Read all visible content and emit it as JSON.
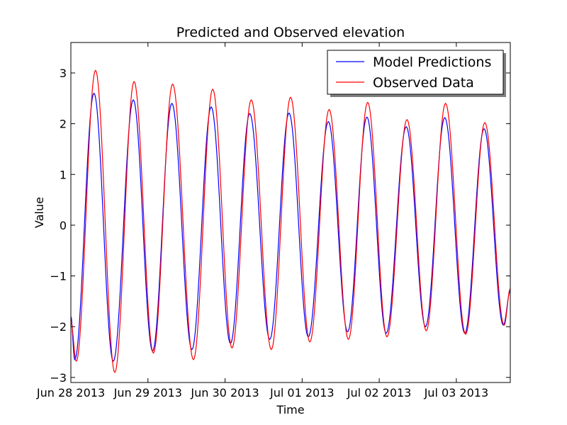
{
  "chart_data": {
    "type": "line",
    "title": "Predicted and Observed elevation",
    "xlabel": "Time",
    "ylabel": "Value",
    "x_unit": "days",
    "xlim": [
      0,
      5.7
    ],
    "ylim": [
      -3.1,
      3.6
    ],
    "xticks": [
      {
        "value": 0,
        "label": "Jun 28 2013"
      },
      {
        "value": 1,
        "label": "Jun 29 2013"
      },
      {
        "value": 2,
        "label": "Jun 30 2013"
      },
      {
        "value": 3,
        "label": "Jul 01 2013"
      },
      {
        "value": 4,
        "label": "Jul 02 2013"
      },
      {
        "value": 5,
        "label": "Jul 03 2013"
      }
    ],
    "yticks": [
      {
        "value": -3,
        "label": "−3"
      },
      {
        "value": -2,
        "label": "−2"
      },
      {
        "value": -1,
        "label": "−1"
      },
      {
        "value": 0,
        "label": "0"
      },
      {
        "value": 1,
        "label": "1"
      },
      {
        "value": 2,
        "label": "2"
      },
      {
        "value": 3,
        "label": "3"
      }
    ],
    "grid": false,
    "legend_position": "top-right",
    "series": [
      {
        "name": "Model Predictions",
        "color": "#0000ff",
        "extrema": [
          {
            "x": 0.0,
            "y": -1.8
          },
          {
            "x": 0.05,
            "y": -2.65
          },
          {
            "x": 0.3,
            "y": 2.6
          },
          {
            "x": 0.55,
            "y": -2.68
          },
          {
            "x": 0.81,
            "y": 2.47
          },
          {
            "x": 1.06,
            "y": -2.48
          },
          {
            "x": 1.31,
            "y": 2.4
          },
          {
            "x": 1.57,
            "y": -2.45
          },
          {
            "x": 1.82,
            "y": 2.33
          },
          {
            "x": 2.07,
            "y": -2.33
          },
          {
            "x": 2.32,
            "y": 2.2
          },
          {
            "x": 2.58,
            "y": -2.25
          },
          {
            "x": 2.83,
            "y": 2.21
          },
          {
            "x": 3.08,
            "y": -2.2
          },
          {
            "x": 3.34,
            "y": 2.04
          },
          {
            "x": 3.59,
            "y": -2.1
          },
          {
            "x": 3.84,
            "y": 2.13
          },
          {
            "x": 4.09,
            "y": -2.13
          },
          {
            "x": 4.35,
            "y": 1.94
          },
          {
            "x": 4.6,
            "y": -2.0
          },
          {
            "x": 4.85,
            "y": 2.12
          },
          {
            "x": 5.11,
            "y": -2.13
          },
          {
            "x": 5.36,
            "y": 1.9
          },
          {
            "x": 5.61,
            "y": -1.97
          },
          {
            "x": 5.7,
            "y": -1.3
          }
        ]
      },
      {
        "name": "Observed Data",
        "color": "#ff0000",
        "extrema": [
          {
            "x": 0.0,
            "y": -1.9
          },
          {
            "x": 0.07,
            "y": -2.68
          },
          {
            "x": 0.32,
            "y": 3.05
          },
          {
            "x": 0.57,
            "y": -2.9
          },
          {
            "x": 0.82,
            "y": 2.83
          },
          {
            "x": 1.07,
            "y": -2.52
          },
          {
            "x": 1.32,
            "y": 2.78
          },
          {
            "x": 1.59,
            "y": -2.65
          },
          {
            "x": 1.84,
            "y": 2.68
          },
          {
            "x": 2.09,
            "y": -2.42
          },
          {
            "x": 2.34,
            "y": 2.47
          },
          {
            "x": 2.6,
            "y": -2.45
          },
          {
            "x": 2.85,
            "y": 2.52
          },
          {
            "x": 3.1,
            "y": -2.3
          },
          {
            "x": 3.35,
            "y": 2.28
          },
          {
            "x": 3.6,
            "y": -2.25
          },
          {
            "x": 3.85,
            "y": 2.42
          },
          {
            "x": 4.1,
            "y": -2.2
          },
          {
            "x": 4.36,
            "y": 2.08
          },
          {
            "x": 4.61,
            "y": -2.08
          },
          {
            "x": 4.86,
            "y": 2.4
          },
          {
            "x": 5.12,
            "y": -2.15
          },
          {
            "x": 5.37,
            "y": 2.02
          },
          {
            "x": 5.62,
            "y": -1.97
          },
          {
            "x": 5.7,
            "y": -1.25
          }
        ]
      }
    ]
  }
}
